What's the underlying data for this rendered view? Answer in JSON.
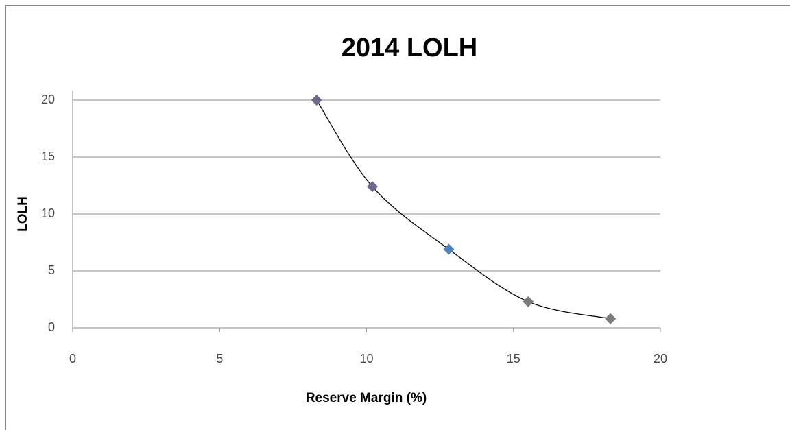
{
  "chart_data": {
    "type": "scatter",
    "title": "2014 LOLH",
    "x_label": "Reserve Margin (%)",
    "y_label": "LOLH",
    "series": [
      {
        "name": "LOLH",
        "x": [
          8.3,
          10.2,
          12.8,
          15.5,
          18.3
        ],
        "values": [
          20,
          12.4,
          6.9,
          2.3,
          0.8
        ],
        "colors": [
          "#6e6a8e",
          "#6e6a8e",
          "#4f81bd",
          "#7a7a7a",
          "#7a7a7a"
        ]
      }
    ],
    "trendline": true,
    "trendline_color": "#000000",
    "xlim": [
      0,
      20
    ],
    "xticks": [
      0,
      5,
      10,
      15,
      20
    ],
    "ylim": [
      0,
      20
    ],
    "yticks": [
      0,
      5,
      10,
      15,
      20
    ],
    "grid": true
  }
}
